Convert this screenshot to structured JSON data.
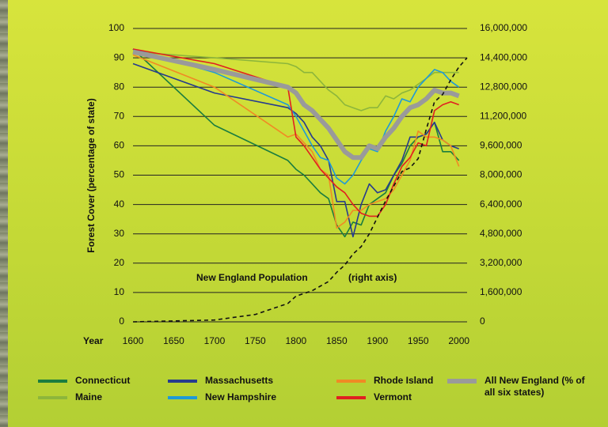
{
  "chart_data": {
    "type": "line",
    "y_label": "Forest Cover (percentage of state)",
    "x_label": "Year",
    "annotations": [
      "New England Population",
      "(right axis)"
    ],
    "xlim": [
      1600,
      2010
    ],
    "xticks": [
      1600,
      1650,
      1700,
      1750,
      1800,
      1850,
      1900,
      1950,
      2000
    ],
    "ylim": [
      0,
      100
    ],
    "yticks": [
      0,
      10,
      20,
      30,
      40,
      50,
      60,
      70,
      80,
      90,
      100
    ],
    "y2lim": [
      0,
      16000000
    ],
    "y2ticks": [
      0,
      {
        "value": 1600000,
        "label": "1,600,000"
      },
      {
        "value": 3200000,
        "label": "3,200,000"
      },
      {
        "value": 4800000,
        "label": "4,800,000"
      },
      {
        "value": 6400000,
        "label": "6,400,000"
      },
      {
        "value": 8000000,
        "label": "8,000,000"
      },
      {
        "value": 9600000,
        "label": "9,600,000"
      },
      {
        "value": 11200000,
        "label": "11,200,000"
      },
      {
        "value": 12800000,
        "label": "12,800,000"
      },
      {
        "value": 14400000,
        "label": "14,400,000"
      },
      {
        "value": 16000000,
        "label": "16,000,000"
      }
    ],
    "grid": true,
    "series": [
      {
        "name": "Connecticut",
        "color": "#1b7d3f",
        "x": [
          1600,
          1700,
          1790,
          1800,
          1810,
          1820,
          1830,
          1840,
          1850,
          1860,
          1870,
          1880,
          1890,
          1900,
          1910,
          1920,
          1930,
          1940,
          1950,
          1960,
          1970,
          1980,
          1990,
          2000
        ],
        "values": [
          93,
          67,
          55,
          52,
          50,
          47,
          44,
          42,
          33,
          29,
          34,
          33,
          40,
          42,
          44,
          50,
          54,
          60,
          63,
          64,
          68,
          58,
          58,
          55
        ]
      },
      {
        "name": "Maine",
        "color": "#8db63b",
        "x": [
          1600,
          1700,
          1790,
          1800,
          1810,
          1820,
          1830,
          1840,
          1850,
          1860,
          1870,
          1880,
          1890,
          1900,
          1910,
          1920,
          1930,
          1940,
          1950,
          1960,
          1970,
          1980,
          1990,
          2000
        ],
        "values": [
          92,
          90,
          88,
          87,
          85,
          85,
          82,
          79,
          77,
          74,
          73,
          72,
          73,
          73,
          77,
          76,
          78,
          79,
          81,
          83,
          85,
          85,
          85,
          85
        ]
      },
      {
        "name": "Massachusetts",
        "color": "#263b8e",
        "x": [
          1600,
          1700,
          1790,
          1800,
          1810,
          1820,
          1830,
          1840,
          1850,
          1860,
          1870,
          1880,
          1890,
          1900,
          1910,
          1920,
          1930,
          1940,
          1950,
          1960,
          1970,
          1980,
          1990,
          2000
        ],
        "values": [
          88,
          78,
          73,
          71,
          68,
          63,
          60,
          55,
          41,
          41,
          29,
          40,
          47,
          44,
          45,
          50,
          55,
          63,
          63,
          64,
          68,
          62,
          60,
          59
        ]
      },
      {
        "name": "New Hampshire",
        "color": "#1e9ad8",
        "x": [
          1600,
          1700,
          1790,
          1800,
          1810,
          1820,
          1830,
          1840,
          1850,
          1860,
          1870,
          1880,
          1890,
          1900,
          1910,
          1920,
          1930,
          1940,
          1950,
          1960,
          1970,
          1980,
          1990,
          2000
        ],
        "values": [
          93,
          85,
          74,
          70,
          65,
          60,
          56,
          55,
          49,
          47,
          50,
          55,
          59,
          58,
          65,
          70,
          76,
          75,
          80,
          83,
          86,
          85,
          82,
          80
        ]
      },
      {
        "name": "Rhode Island",
        "color": "#f08a24",
        "x": [
          1600,
          1700,
          1790,
          1800,
          1810,
          1820,
          1830,
          1840,
          1850,
          1860,
          1870,
          1880,
          1890,
          1900,
          1910,
          1920,
          1930,
          1940,
          1950,
          1960,
          1970,
          1980,
          1990,
          2000
        ],
        "values": [
          91,
          80,
          63,
          64,
          61,
          58,
          52,
          50,
          32,
          34,
          38,
          38,
          40,
          41,
          42,
          45,
          50,
          55,
          65,
          63,
          63,
          62,
          60,
          53
        ]
      },
      {
        "name": "Vermont",
        "color": "#e02020",
        "x": [
          1600,
          1700,
          1790,
          1800,
          1810,
          1820,
          1830,
          1840,
          1850,
          1860,
          1870,
          1880,
          1890,
          1900,
          1910,
          1920,
          1930,
          1940,
          1950,
          1960,
          1970,
          1980,
          1990,
          2000
        ],
        "values": [
          93,
          88,
          80,
          63,
          60,
          56,
          52,
          49,
          46,
          44,
          40,
          37,
          36,
          36,
          40,
          47,
          53,
          56,
          61,
          60,
          72,
          74,
          75,
          74
        ]
      },
      {
        "name": "All New England (% of all six states)",
        "color": "#9a9a9a",
        "x": [
          1600,
          1700,
          1790,
          1800,
          1810,
          1820,
          1830,
          1840,
          1850,
          1860,
          1870,
          1880,
          1890,
          1900,
          1910,
          1920,
          1930,
          1940,
          1950,
          1960,
          1970,
          1980,
          1990,
          2000
        ],
        "values": [
          92,
          86,
          80,
          78,
          74,
          72,
          69,
          66,
          62,
          58,
          56,
          56,
          60,
          59,
          63,
          66,
          70,
          73,
          74,
          76,
          79,
          78,
          78,
          77
        ]
      },
      {
        "name": "New England Population",
        "color": "#111111",
        "axis": "y2",
        "x": [
          1600,
          1700,
          1750,
          1790,
          1800,
          1820,
          1840,
          1850,
          1860,
          1870,
          1880,
          1890,
          1900,
          1910,
          1920,
          1930,
          1940,
          1950,
          1960,
          1970,
          1980,
          1990,
          2000,
          2010
        ],
        "values": [
          0,
          100000,
          400000,
          1000000,
          1400000,
          1700000,
          2200000,
          2700000,
          3100000,
          3700000,
          4100000,
          4800000,
          5700000,
          6600000,
          7400000,
          8200000,
          8400000,
          8900000,
          10500000,
          12000000,
          12400000,
          13200000,
          13900000,
          14400000
        ]
      }
    ]
  }
}
